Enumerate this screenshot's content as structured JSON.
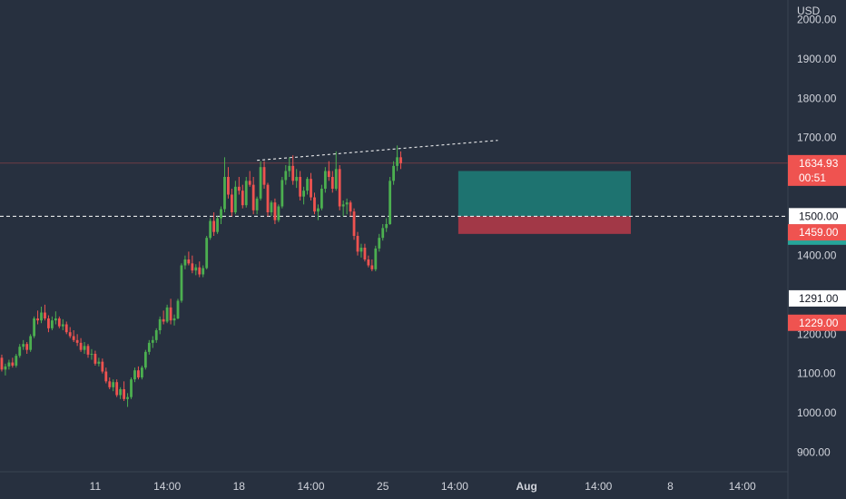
{
  "colors": {
    "background": "#27303f",
    "up": "#26a69a",
    "up_body": "#4caf50",
    "down": "#ef5350",
    "text": "#d1d4dc",
    "axis_line": "#3a4352",
    "price_badge": "#ef5350",
    "profit_zone": "#1e7b76",
    "loss_zone": "#b03a48",
    "line_badge": "#ffffff"
  },
  "chart_data": {
    "type": "candlestick",
    "currency": "USD",
    "ylim": [
      850,
      2050
    ],
    "y_ticks": [
      900,
      1000,
      1100,
      1200,
      1300,
      1400,
      1500,
      1600,
      1700,
      1800,
      1900,
      2000
    ],
    "y_tick_labels": [
      "900.00",
      "1000.00",
      "1100.00",
      "1200.00",
      "1300.00",
      "1400.00",
      "1500.00",
      "1600.00",
      "1700.00",
      "1800.00",
      "1900.00",
      "2000.00"
    ],
    "x_tick_labels": [
      "11",
      "14:00",
      "18",
      "14:00",
      "25",
      "14:00",
      "Aug",
      "14:00",
      "8",
      "14:00"
    ],
    "x_tick_bold": [
      false,
      false,
      false,
      false,
      false,
      false,
      true,
      false,
      false,
      false
    ],
    "x_tick_index": [
      27,
      47,
      67,
      87,
      107,
      127,
      147,
      167,
      187,
      207
    ],
    "last_price": "1634.93",
    "countdown": "00:51",
    "price_lines": [
      {
        "value": 1500,
        "label": "1500.00",
        "style": "dashed"
      },
      {
        "value": 1291,
        "label": "1291.00",
        "style": "none"
      }
    ],
    "badges": [
      {
        "value": 1459,
        "label": "1459.00",
        "color": "#ef5350"
      },
      {
        "value": 1229,
        "label": "1229.00",
        "color": "#ef5350"
      }
    ],
    "position": {
      "entry": 1500,
      "target": 1615,
      "stop": 1455,
      "from_index": 128,
      "to_index": 176
    },
    "trendline": {
      "from": {
        "index": 72,
        "value": 1642
      },
      "to": {
        "index": 139,
        "value": 1693
      }
    },
    "candles": [
      [
        1145,
        1165,
        1130,
        1140
      ],
      [
        1140,
        1148,
        1105,
        1110
      ],
      [
        1110,
        1125,
        1095,
        1118
      ],
      [
        1118,
        1135,
        1110,
        1128
      ],
      [
        1128,
        1140,
        1115,
        1120
      ],
      [
        1120,
        1150,
        1115,
        1145
      ],
      [
        1145,
        1175,
        1140,
        1168
      ],
      [
        1168,
        1185,
        1160,
        1175
      ],
      [
        1175,
        1180,
        1150,
        1160
      ],
      [
        1160,
        1200,
        1155,
        1195
      ],
      [
        1195,
        1245,
        1190,
        1240
      ],
      [
        1240,
        1260,
        1225,
        1235
      ],
      [
        1235,
        1270,
        1228,
        1255
      ],
      [
        1255,
        1275,
        1235,
        1240
      ],
      [
        1240,
        1248,
        1205,
        1215
      ],
      [
        1215,
        1245,
        1210,
        1235
      ],
      [
        1235,
        1258,
        1225,
        1240
      ],
      [
        1240,
        1245,
        1215,
        1220
      ],
      [
        1220,
        1238,
        1210,
        1225
      ],
      [
        1225,
        1232,
        1200,
        1205
      ],
      [
        1205,
        1218,
        1190,
        1195
      ],
      [
        1195,
        1210,
        1180,
        1185
      ],
      [
        1185,
        1200,
        1170,
        1178
      ],
      [
        1178,
        1190,
        1155,
        1160
      ],
      [
        1160,
        1180,
        1150,
        1170
      ],
      [
        1170,
        1175,
        1140,
        1148
      ],
      [
        1148,
        1162,
        1135,
        1150
      ],
      [
        1150,
        1158,
        1120,
        1125
      ],
      [
        1125,
        1140,
        1118,
        1130
      ],
      [
        1130,
        1138,
        1100,
        1105
      ],
      [
        1105,
        1115,
        1075,
        1080
      ],
      [
        1080,
        1090,
        1060,
        1065
      ],
      [
        1065,
        1085,
        1055,
        1078
      ],
      [
        1078,
        1085,
        1040,
        1045
      ],
      [
        1045,
        1065,
        1035,
        1060
      ],
      [
        1060,
        1080,
        1030,
        1035
      ],
      [
        1035,
        1050,
        1015,
        1040
      ],
      [
        1040,
        1090,
        1035,
        1085
      ],
      [
        1085,
        1115,
        1078,
        1108
      ],
      [
        1108,
        1118,
        1085,
        1090
      ],
      [
        1090,
        1120,
        1085,
        1115
      ],
      [
        1115,
        1160,
        1110,
        1155
      ],
      [
        1155,
        1185,
        1148,
        1178
      ],
      [
        1178,
        1195,
        1165,
        1185
      ],
      [
        1185,
        1215,
        1178,
        1210
      ],
      [
        1210,
        1245,
        1200,
        1238
      ],
      [
        1238,
        1260,
        1225,
        1232
      ],
      [
        1232,
        1275,
        1228,
        1268
      ],
      [
        1268,
        1290,
        1225,
        1235
      ],
      [
        1235,
        1250,
        1222,
        1240
      ],
      [
        1240,
        1290,
        1238,
        1285
      ],
      [
        1285,
        1380,
        1280,
        1375
      ],
      [
        1375,
        1400,
        1365,
        1390
      ],
      [
        1390,
        1410,
        1375,
        1380
      ],
      [
        1380,
        1400,
        1355,
        1362
      ],
      [
        1362,
        1378,
        1350,
        1370
      ],
      [
        1370,
        1385,
        1345,
        1352
      ],
      [
        1352,
        1375,
        1345,
        1368
      ],
      [
        1368,
        1450,
        1365,
        1445
      ],
      [
        1445,
        1495,
        1440,
        1488
      ],
      [
        1488,
        1510,
        1450,
        1460
      ],
      [
        1460,
        1500,
        1455,
        1495
      ],
      [
        1495,
        1525,
        1480,
        1518
      ],
      [
        1518,
        1650,
        1510,
        1600
      ],
      [
        1600,
        1625,
        1545,
        1555
      ],
      [
        1555,
        1570,
        1500,
        1510
      ],
      [
        1510,
        1590,
        1505,
        1575
      ],
      [
        1575,
        1600,
        1555,
        1565
      ],
      [
        1565,
        1580,
        1520,
        1528
      ],
      [
        1528,
        1600,
        1522,
        1590
      ],
      [
        1590,
        1615,
        1575,
        1580
      ],
      [
        1580,
        1600,
        1505,
        1515
      ],
      [
        1515,
        1550,
        1505,
        1545
      ],
      [
        1545,
        1640,
        1540,
        1625
      ],
      [
        1625,
        1640,
        1570,
        1580
      ],
      [
        1580,
        1585,
        1500,
        1510
      ],
      [
        1510,
        1540,
        1500,
        1535
      ],
      [
        1535,
        1545,
        1480,
        1490
      ],
      [
        1490,
        1530,
        1485,
        1525
      ],
      [
        1525,
        1600,
        1520,
        1592
      ],
      [
        1592,
        1630,
        1580,
        1615
      ],
      [
        1615,
        1650,
        1600,
        1628
      ],
      [
        1628,
        1655,
        1580,
        1590
      ],
      [
        1590,
        1620,
        1572,
        1600
      ],
      [
        1600,
        1615,
        1540,
        1550
      ],
      [
        1550,
        1575,
        1530,
        1565
      ],
      [
        1565,
        1600,
        1555,
        1595
      ],
      [
        1595,
        1610,
        1540,
        1548
      ],
      [
        1548,
        1560,
        1505,
        1512
      ],
      [
        1512,
        1530,
        1490,
        1520
      ],
      [
        1520,
        1580,
        1515,
        1570
      ],
      [
        1570,
        1625,
        1560,
        1615
      ],
      [
        1615,
        1640,
        1590,
        1600
      ],
      [
        1600,
        1615,
        1560,
        1570
      ],
      [
        1570,
        1665,
        1565,
        1620
      ],
      [
        1620,
        1630,
        1515,
        1525
      ],
      [
        1525,
        1540,
        1500,
        1530
      ],
      [
        1530,
        1545,
        1505,
        1535
      ],
      [
        1535,
        1540,
        1500,
        1512
      ],
      [
        1512,
        1520,
        1440,
        1450
      ],
      [
        1450,
        1460,
        1400,
        1410
      ],
      [
        1410,
        1430,
        1395,
        1420
      ],
      [
        1420,
        1430,
        1385,
        1390
      ],
      [
        1390,
        1400,
        1370,
        1375
      ],
      [
        1375,
        1390,
        1360,
        1365
      ],
      [
        1365,
        1425,
        1360,
        1418
      ],
      [
        1418,
        1455,
        1410,
        1445
      ],
      [
        1445,
        1480,
        1438,
        1470
      ],
      [
        1470,
        1495,
        1460,
        1480
      ],
      [
        1480,
        1600,
        1478,
        1590
      ],
      [
        1590,
        1640,
        1580,
        1628
      ],
      [
        1628,
        1680,
        1615,
        1650
      ],
      [
        1650,
        1665,
        1620,
        1634.93
      ]
    ]
  }
}
